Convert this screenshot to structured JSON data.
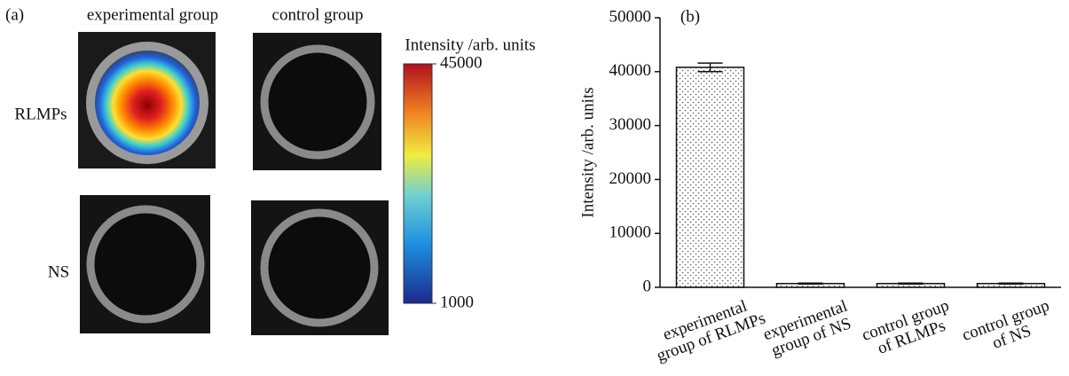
{
  "panel_a": {
    "panel_label": "(a)",
    "columns": [
      "experimental group",
      "control group"
    ],
    "rows": [
      "RLMPs",
      "NS"
    ],
    "colorbar": {
      "title": "Intensity /arb. units",
      "clim": [
        1000,
        45000
      ],
      "ticks": [
        1000,
        45000
      ]
    }
  },
  "chart_data": {
    "type": "bar",
    "panel_label": "(b)",
    "y_label": "Intensity /arb. units",
    "categories": [
      [
        "experimental",
        "group of RLMPs"
      ],
      [
        "experimental",
        "group of NS"
      ],
      [
        "control group",
        "of RLMPs"
      ],
      [
        "control group",
        "of NS"
      ]
    ],
    "values": [
      40800,
      700,
      700,
      700
    ],
    "errors": [
      800,
      80,
      80,
      80
    ],
    "color": "#ffffff",
    "ylim": [
      0,
      50000
    ],
    "yticks": [
      0,
      10000,
      20000,
      30000,
      40000,
      50000
    ]
  }
}
